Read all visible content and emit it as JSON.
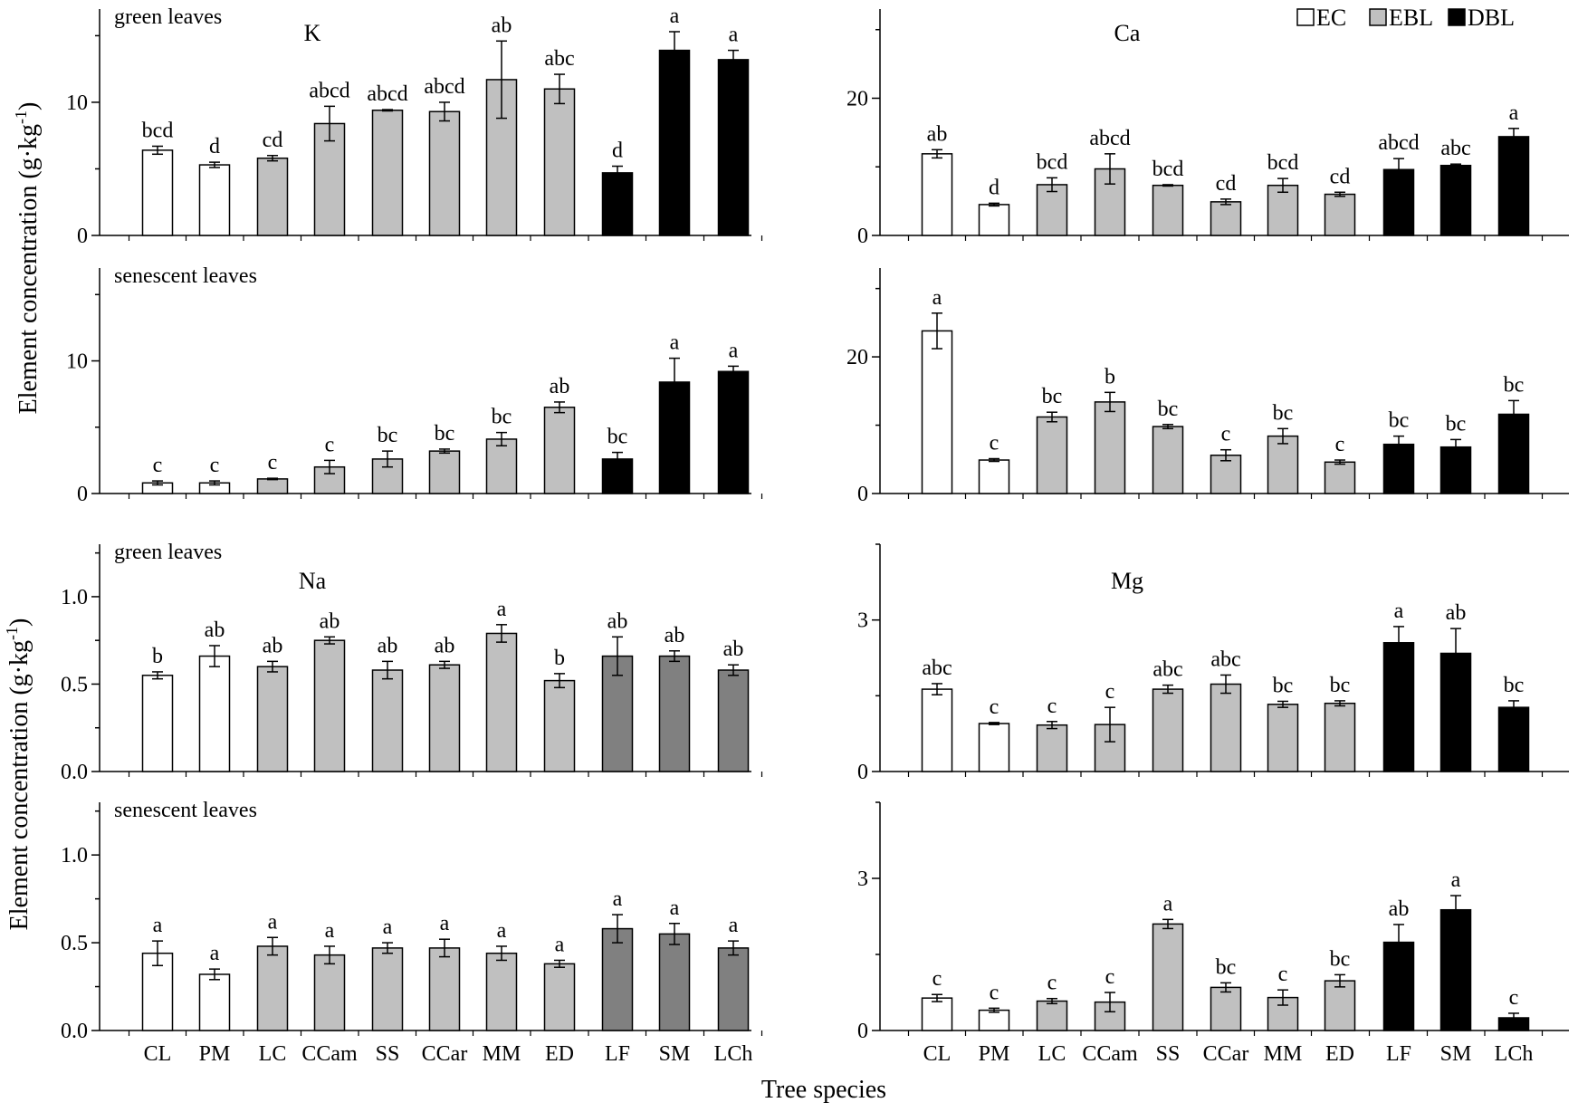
{
  "figure": {
    "y_axis_label": "Element concentration (g·kg",
    "y_axis_label_sup": "-1",
    "y_axis_label_close": ")",
    "x_axis_label": "Tree species"
  },
  "legend": [
    {
      "label": "EC",
      "color": "#ffffff"
    },
    {
      "label": "EBL",
      "color": "#c0c0c0"
    },
    {
      "label": "DBL",
      "color": "#000000"
    }
  ],
  "chart_data": [
    {
      "type": "bar",
      "element": "K",
      "tag": "green leaves",
      "categories": [
        "CL",
        "PM",
        "LC",
        "CCam",
        "SS",
        "CCar",
        "MM",
        "ED",
        "LF",
        "SM",
        "LCh"
      ],
      "values": [
        6.4,
        5.3,
        5.8,
        8.4,
        9.4,
        9.3,
        11.7,
        11.0,
        4.7,
        13.9,
        13.2
      ],
      "errors": [
        0.3,
        0.2,
        0.2,
        1.3,
        0.05,
        0.7,
        2.9,
        1.1,
        0.5,
        1.4,
        0.7
      ],
      "letters": [
        "bcd",
        "d",
        "cd",
        "abcd",
        "abcd",
        "abcd",
        "ab",
        "abc",
        "d",
        "a",
        "a"
      ],
      "colors": [
        "#ffffff",
        "#ffffff",
        "#c0c0c0",
        "#c0c0c0",
        "#c0c0c0",
        "#c0c0c0",
        "#c0c0c0",
        "#c0c0c0",
        "#000000",
        "#000000",
        "#000000"
      ],
      "ylim": [
        0,
        17
      ],
      "yticks": [
        0,
        10
      ],
      "ytick_labels": [
        "0",
        "10"
      ]
    },
    {
      "type": "bar",
      "element": "",
      "tag": "senescent leaves",
      "categories": [
        "CL",
        "PM",
        "LC",
        "CCam",
        "SS",
        "CCar",
        "MM",
        "ED",
        "LF",
        "SM",
        "LCh"
      ],
      "values": [
        0.8,
        0.8,
        1.1,
        2.0,
        2.6,
        3.2,
        4.1,
        6.5,
        2.6,
        8.4,
        9.2
      ],
      "errors": [
        0.15,
        0.15,
        0.05,
        0.5,
        0.6,
        0.15,
        0.5,
        0.4,
        0.5,
        1.8,
        0.4
      ],
      "letters": [
        "c",
        "c",
        "c",
        "c",
        "bc",
        "bc",
        "bc",
        "ab",
        "bc",
        "a",
        "a"
      ],
      "colors": [
        "#ffffff",
        "#ffffff",
        "#c0c0c0",
        "#c0c0c0",
        "#c0c0c0",
        "#c0c0c0",
        "#c0c0c0",
        "#c0c0c0",
        "#000000",
        "#000000",
        "#000000"
      ],
      "ylim": [
        0,
        17
      ],
      "yticks": [
        0,
        10
      ],
      "ytick_labels": [
        "0",
        "10"
      ]
    },
    {
      "type": "bar",
      "element": "Na",
      "tag": "green leaves",
      "categories": [
        "CL",
        "PM",
        "LC",
        "CCam",
        "SS",
        "CCar",
        "MM",
        "ED",
        "LF",
        "SM",
        "LCh"
      ],
      "values": [
        0.55,
        0.66,
        0.6,
        0.75,
        0.58,
        0.61,
        0.79,
        0.52,
        0.66,
        0.66,
        0.58
      ],
      "errors": [
        0.02,
        0.06,
        0.03,
        0.02,
        0.05,
        0.02,
        0.05,
        0.04,
        0.11,
        0.03,
        0.03
      ],
      "letters": [
        "b",
        "ab",
        "ab",
        "ab",
        "ab",
        "ab",
        "a",
        "b",
        "ab",
        "ab",
        "ab"
      ],
      "colors": [
        "#ffffff",
        "#ffffff",
        "#c0c0c0",
        "#c0c0c0",
        "#c0c0c0",
        "#c0c0c0",
        "#c0c0c0",
        "#c0c0c0",
        "#808080",
        "#808080",
        "#808080"
      ],
      "ylim": [
        0,
        1.3
      ],
      "yticks": [
        0,
        0.5,
        1.0
      ],
      "ytick_labels": [
        "0.0",
        "0.5",
        "1.0"
      ]
    },
    {
      "type": "bar",
      "element": "",
      "tag": "senescent leaves",
      "categories": [
        "CL",
        "PM",
        "LC",
        "CCam",
        "SS",
        "CCar",
        "MM",
        "ED",
        "LF",
        "SM",
        "LCh"
      ],
      "values": [
        0.44,
        0.32,
        0.48,
        0.43,
        0.47,
        0.47,
        0.44,
        0.38,
        0.58,
        0.55,
        0.47
      ],
      "errors": [
        0.07,
        0.03,
        0.05,
        0.05,
        0.03,
        0.05,
        0.04,
        0.02,
        0.08,
        0.06,
        0.04
      ],
      "letters": [
        "a",
        "a",
        "a",
        "a",
        "a",
        "a",
        "a",
        "a",
        "a",
        "a",
        "a"
      ],
      "colors": [
        "#ffffff",
        "#ffffff",
        "#c0c0c0",
        "#c0c0c0",
        "#c0c0c0",
        "#c0c0c0",
        "#c0c0c0",
        "#c0c0c0",
        "#808080",
        "#808080",
        "#808080"
      ],
      "ylim": [
        0,
        1.3
      ],
      "yticks": [
        0,
        0.5,
        1.0
      ],
      "ytick_labels": [
        "0.0",
        "0.5",
        "1.0"
      ]
    },
    {
      "type": "bar",
      "element": "Ca",
      "tag": "",
      "categories": [
        "CL",
        "PM",
        "LC",
        "CCam",
        "SS",
        "CCar",
        "MM",
        "ED",
        "LF",
        "SM",
        "LCh"
      ],
      "values": [
        11.9,
        4.5,
        7.4,
        9.7,
        7.3,
        4.9,
        7.3,
        6.0,
        9.6,
        10.2,
        14.4
      ],
      "errors": [
        0.6,
        0.2,
        1.0,
        2.2,
        0.1,
        0.4,
        1.0,
        0.3,
        1.6,
        0.2,
        1.2
      ],
      "letters": [
        "ab",
        "d",
        "bcd",
        "abcd",
        "bcd",
        "cd",
        "bcd",
        "cd",
        "abcd",
        "abc",
        "a"
      ],
      "colors": [
        "#ffffff",
        "#ffffff",
        "#c0c0c0",
        "#c0c0c0",
        "#c0c0c0",
        "#c0c0c0",
        "#c0c0c0",
        "#c0c0c0",
        "#000000",
        "#000000",
        "#000000"
      ],
      "ylim": [
        0,
        33
      ],
      "yticks": [
        0,
        20
      ],
      "ytick_labels": [
        "0",
        "20"
      ]
    },
    {
      "type": "bar",
      "element": "",
      "tag": "",
      "categories": [
        "CL",
        "PM",
        "LC",
        "CCam",
        "SS",
        "CCar",
        "MM",
        "ED",
        "LF",
        "SM",
        "LCh"
      ],
      "values": [
        23.8,
        4.9,
        11.2,
        13.4,
        9.8,
        5.6,
        8.4,
        4.6,
        7.2,
        6.8,
        11.6
      ],
      "errors": [
        2.6,
        0.2,
        0.7,
        1.4,
        0.3,
        0.8,
        1.1,
        0.3,
        1.2,
        1.1,
        2.0
      ],
      "letters": [
        "a",
        "c",
        "bc",
        "b",
        "bc",
        "c",
        "bc",
        "c",
        "bc",
        "bc",
        "bc"
      ],
      "colors": [
        "#ffffff",
        "#ffffff",
        "#c0c0c0",
        "#c0c0c0",
        "#c0c0c0",
        "#c0c0c0",
        "#c0c0c0",
        "#c0c0c0",
        "#000000",
        "#000000",
        "#000000"
      ],
      "ylim": [
        0,
        33
      ],
      "yticks": [
        0,
        20
      ],
      "ytick_labels": [
        "0",
        "20"
      ]
    },
    {
      "type": "bar",
      "element": "Mg",
      "tag": "",
      "categories": [
        "CL",
        "PM",
        "LC",
        "CCam",
        "SS",
        "CCar",
        "MM",
        "ED",
        "LF",
        "SM",
        "LCh"
      ],
      "values": [
        1.63,
        0.95,
        0.92,
        0.93,
        1.63,
        1.73,
        1.33,
        1.35,
        2.55,
        2.34,
        1.27
      ],
      "errors": [
        0.11,
        0.02,
        0.07,
        0.34,
        0.08,
        0.18,
        0.06,
        0.05,
        0.32,
        0.49,
        0.13
      ],
      "letters": [
        "abc",
        "c",
        "c",
        "c",
        "abc",
        "abc",
        "bc",
        "bc",
        "a",
        "ab",
        "bc"
      ],
      "colors": [
        "#ffffff",
        "#ffffff",
        "#c0c0c0",
        "#c0c0c0",
        "#c0c0c0",
        "#c0c0c0",
        "#c0c0c0",
        "#c0c0c0",
        "#000000",
        "#000000",
        "#000000"
      ],
      "ylim": [
        0,
        4.5
      ],
      "yticks": [
        0,
        3
      ],
      "ytick_labels": [
        "0",
        "3"
      ]
    },
    {
      "type": "bar",
      "element": "",
      "tag": "",
      "categories": [
        "CL",
        "PM",
        "LC",
        "CCam",
        "SS",
        "CCar",
        "MM",
        "ED",
        "LF",
        "SM",
        "LCh"
      ],
      "values": [
        0.64,
        0.4,
        0.58,
        0.56,
        2.1,
        0.85,
        0.65,
        0.98,
        1.74,
        2.38,
        0.25
      ],
      "errors": [
        0.07,
        0.04,
        0.05,
        0.19,
        0.09,
        0.09,
        0.15,
        0.12,
        0.35,
        0.28,
        0.09
      ],
      "letters": [
        "c",
        "c",
        "c",
        "c",
        "a",
        "bc",
        "c",
        "bc",
        "ab",
        "a",
        "c"
      ],
      "colors": [
        "#ffffff",
        "#ffffff",
        "#c0c0c0",
        "#c0c0c0",
        "#c0c0c0",
        "#c0c0c0",
        "#c0c0c0",
        "#c0c0c0",
        "#000000",
        "#000000",
        "#000000"
      ],
      "ylim": [
        0,
        4.5
      ],
      "yticks": [
        0,
        3
      ],
      "ytick_labels": [
        "0",
        "3"
      ]
    }
  ]
}
